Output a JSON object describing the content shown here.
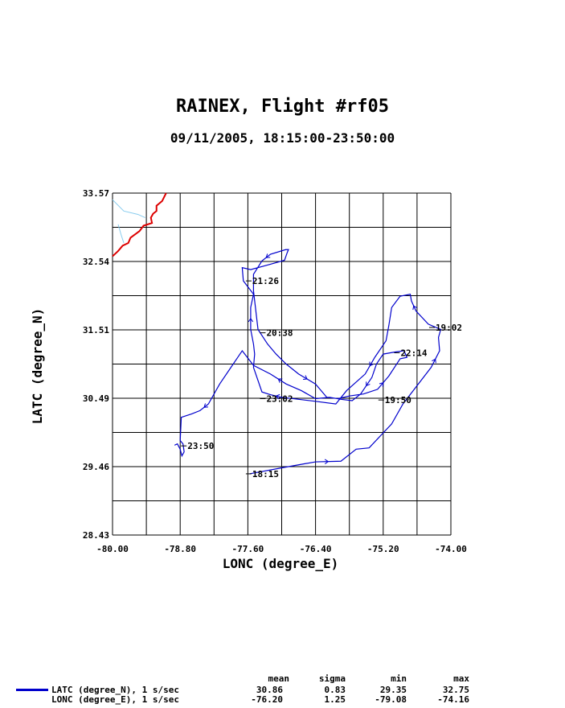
{
  "header": {
    "title": "RAINEX, Flight #rf05",
    "subtitle": "09/11/2005, 18:15:00-23:50:00"
  },
  "chart_data": {
    "type": "line",
    "title": "RAINEX, Flight #rf05",
    "subtitle": "09/11/2005, 18:15:00-23:50:00",
    "xlabel": "LONC (degree_E)",
    "ylabel": "LATC (degree_N)",
    "xlim": [
      -80.0,
      -74.0
    ],
    "ylim": [
      28.43,
      33.57
    ],
    "xticks": [
      "-80.00",
      "-78.80",
      "-77.60",
      "-76.40",
      "-75.20",
      "-74.00"
    ],
    "yticks": [
      "28.43",
      "29.46",
      "30.49",
      "31.51",
      "32.54",
      "33.57"
    ],
    "grid": true,
    "track_color": "#0000cc",
    "coast_color": "#dd0000",
    "border_color": "#88ccee",
    "series": [
      {
        "name": "Flight track",
        "x": [
          -77.57,
          -77.0,
          -76.6,
          -76.4,
          -75.95,
          -75.68,
          -75.45,
          -75.05,
          -74.85,
          -74.35,
          -74.2,
          -74.22,
          -74.18,
          -74.4,
          -74.62,
          -74.7,
          -74.72,
          -74.9,
          -75.05,
          -75.1,
          -75.15,
          -75.35,
          -75.52,
          -75.85,
          -76.04,
          -76.4,
          -76.7,
          -77.0,
          -77.2,
          -77.35,
          -77.5,
          -77.48,
          -77.5,
          -77.55,
          -77.55,
          -77.5,
          -77.68,
          -77.7,
          -77.55,
          -77.2,
          -76.95,
          -76.9,
          -76.88,
          -76.93,
          -77.2,
          -77.35,
          -77.5,
          -77.5,
          -77.42,
          -77.25,
          -77.1,
          -76.92,
          -76.7,
          -76.4,
          -76.2,
          -76.0,
          -75.8,
          -75.55,
          -75.3,
          -75.1,
          -74.9,
          -74.78,
          -74.83,
          -75.0,
          -75.2,
          -75.32,
          -75.4,
          -75.6,
          -75.75,
          -75.95,
          -76.15,
          -76.4,
          -76.65,
          -76.92,
          -77.2,
          -77.5,
          -77.7,
          -77.9,
          -78.1,
          -78.3,
          -78.45,
          -78.6,
          -78.78,
          -78.8,
          -78.75,
          -78.73,
          -78.77,
          -78.8,
          -78.85,
          -78.9
        ],
        "y": [
          29.35,
          29.44,
          29.5,
          29.53,
          29.54,
          29.72,
          29.74,
          30.1,
          30.4,
          30.95,
          31.2,
          31.4,
          31.52,
          31.6,
          31.8,
          31.95,
          32.05,
          32.02,
          31.85,
          31.58,
          31.35,
          31.1,
          30.85,
          30.6,
          30.4,
          30.44,
          30.47,
          30.5,
          30.54,
          30.58,
          30.95,
          31.15,
          31.3,
          31.52,
          31.85,
          32.05,
          32.25,
          32.45,
          32.42,
          32.5,
          32.56,
          32.68,
          32.72,
          32.72,
          32.65,
          32.55,
          32.35,
          32.1,
          31.52,
          31.3,
          31.15,
          31.0,
          30.85,
          30.7,
          30.5,
          30.48,
          30.52,
          30.55,
          30.62,
          30.82,
          31.08,
          31.1,
          31.2,
          31.18,
          31.15,
          31.0,
          30.8,
          30.55,
          30.45,
          30.47,
          30.5,
          30.48,
          30.6,
          30.7,
          30.85,
          30.98,
          31.2,
          30.95,
          30.7,
          30.4,
          30.3,
          30.25,
          30.2,
          29.85,
          29.8,
          29.68,
          29.62,
          29.72,
          29.8,
          29.78
        ]
      }
    ],
    "time_labels": [
      {
        "text": "18:15",
        "x": -77.55,
        "y": 29.35
      },
      {
        "text": "19:02",
        "x": -74.3,
        "y": 31.55
      },
      {
        "text": "19:50",
        "x": -75.2,
        "y": 30.46
      },
      {
        "text": "20:38",
        "x": -77.3,
        "y": 31.47
      },
      {
        "text": "21:26",
        "x": -77.55,
        "y": 32.25
      },
      {
        "text": "22:14",
        "x": -74.92,
        "y": 31.17
      },
      {
        "text": "23:02",
        "x": -77.3,
        "y": 30.48
      },
      {
        "text": "23:50",
        "x": -78.7,
        "y": 29.77
      }
    ],
    "legend": {
      "position": "bottom-left",
      "headers": [
        "mean",
        "sigma",
        "min",
        "max"
      ],
      "rows": [
        {
          "label": "LATC (degree_N), 1 s/sec",
          "mean": "30.86",
          "sigma": "0.83",
          "min": "29.35",
          "max": "32.75"
        },
        {
          "label": "LONC (degree_E), 1 s/sec",
          "mean": "-76.20",
          "sigma": "1.25",
          "min": "-79.08",
          "max": "-74.16"
        }
      ]
    }
  }
}
